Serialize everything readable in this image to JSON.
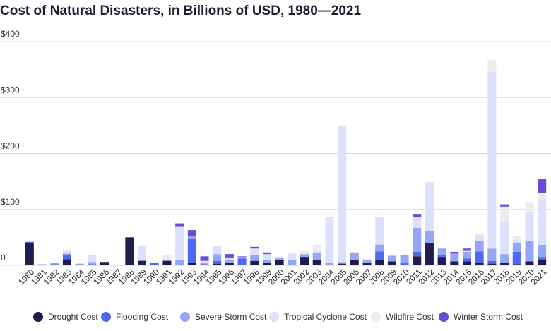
{
  "chart_data": {
    "type": "stacked_bar",
    "title": "Cost of Natural Disasters, in Billions of USD, 1980—2021",
    "categories": [
      "1980",
      "1981",
      "1982",
      "1983",
      "1984",
      "1985",
      "1986",
      "1987",
      "1988",
      "1989",
      "1990",
      "1991",
      "1992",
      "1993",
      "1994",
      "1995",
      "1996",
      "1997",
      "1998",
      "1999",
      "2000",
      "2001",
      "2002",
      "2003",
      "2004",
      "2005",
      "2006",
      "2007",
      "2008",
      "2009",
      "2010",
      "2011",
      "2012",
      "2013",
      "2014",
      "2015",
      "2016",
      "2017",
      "2018",
      "2019",
      "2020",
      "2021"
    ],
    "series": [
      {
        "name": "Drought Cost",
        "color": "#211c4e",
        "values": [
          40,
          0,
          0,
          11,
          0,
          0,
          6,
          1,
          50,
          8,
          0,
          8,
          1,
          4,
          0,
          3,
          5,
          0,
          8,
          5,
          10,
          0,
          15,
          10,
          0,
          3,
          10,
          5,
          10,
          7,
          0,
          16,
          40,
          15,
          7,
          7,
          5,
          3,
          5,
          2,
          7,
          10
        ]
      },
      {
        "name": "Flooding Cost",
        "color": "#4d6bf2",
        "values": [
          2,
          1,
          2,
          7,
          0,
          2,
          0,
          0,
          0,
          0,
          4,
          0,
          0,
          44,
          2,
          5,
          0,
          12,
          0,
          0,
          0,
          0,
          0,
          0,
          0,
          0,
          0,
          0,
          15,
          0,
          5,
          8,
          0,
          4,
          0,
          5,
          20,
          5,
          0,
          22,
          0,
          5
        ]
      },
      {
        "name": "Severe Storm Cost",
        "color": "#94a6f5",
        "values": [
          0,
          1,
          2,
          3,
          3,
          4,
          0,
          0,
          0,
          2,
          1,
          2,
          8,
          5,
          3,
          12,
          5,
          3,
          10,
          5,
          4,
          10,
          5,
          13,
          5,
          3,
          12,
          5,
          12,
          10,
          14,
          43,
          22,
          11,
          14,
          12,
          18,
          22,
          15,
          16,
          37,
          22
        ]
      },
      {
        "name": "Tropical Cyclone Cost",
        "color": "#dce1fb",
        "values": [
          0,
          0,
          0,
          4,
          0,
          12,
          0,
          0,
          0,
          24,
          0,
          0,
          61,
          0,
          0,
          14,
          4,
          0,
          12,
          10,
          0,
          11,
          0,
          3,
          82,
          244,
          0,
          0,
          50,
          0,
          0,
          20,
          86,
          0,
          0,
          0,
          12,
          316,
          57,
          6,
          51,
          80
        ]
      },
      {
        "name": "Wildfire Cost",
        "color": "#ececec",
        "values": [
          0,
          0,
          0,
          3,
          0,
          0,
          0,
          0,
          0,
          0,
          0,
          9,
          0,
          0,
          3,
          0,
          0,
          0,
          0,
          0,
          2,
          0,
          6,
          11,
          0,
          0,
          2,
          2,
          0,
          1,
          0,
          0,
          1,
          0,
          0,
          3,
          2,
          21,
          28,
          6,
          18,
          13
        ]
      },
      {
        "name": "Winter Storm Cost",
        "color": "#6a4ad6",
        "values": [
          0,
          0,
          1,
          0,
          0,
          0,
          0,
          0,
          0,
          0,
          0,
          0,
          5,
          10,
          8,
          0,
          6,
          1,
          3,
          3,
          0,
          0,
          0,
          0,
          0,
          0,
          0,
          0,
          0,
          0,
          0,
          5,
          0,
          0,
          3,
          3,
          0,
          0,
          4,
          0,
          0,
          24
        ]
      }
    ],
    "ylim": [
      0,
      400
    ],
    "yticks": [
      {
        "value": 0,
        "label": "0"
      },
      {
        "value": 100,
        "label": "$100"
      },
      {
        "value": 200,
        "label": "$200"
      },
      {
        "value": 300,
        "label": "$300"
      },
      {
        "value": 400,
        "label": "$400"
      }
    ],
    "grid": true
  }
}
